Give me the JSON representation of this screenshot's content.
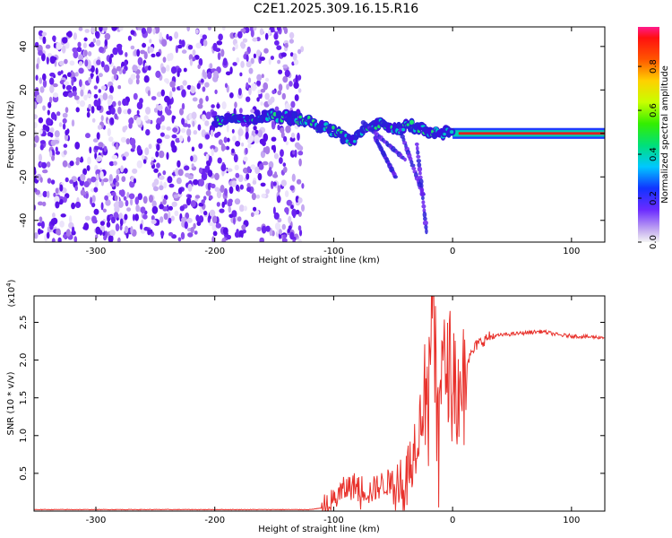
{
  "title": "C2E1.2025.309.16.15.R16",
  "chart_data": [
    {
      "type": "heatmap",
      "xlabel": "Height of straight line (km)",
      "ylabel": "Frequency (Hz)",
      "xlim": [
        -352,
        128
      ],
      "ylim": [
        -50,
        49
      ],
      "xticks": [
        -300,
        -200,
        -100,
        0,
        100
      ],
      "xtick_labels": [
        "-300",
        "-200",
        "-100",
        "0",
        "100"
      ],
      "yticks": [
        -40,
        -20,
        0,
        20,
        40
      ],
      "ytick_labels": [
        "-40",
        "-20",
        "0",
        "20",
        "40"
      ],
      "noise_region_x": [
        -352,
        -128
      ],
      "signal_track": [
        {
          "x": -200,
          "y": 6
        },
        {
          "x": -185,
          "y": 7
        },
        {
          "x": -170,
          "y": 7
        },
        {
          "x": -150,
          "y": 8
        },
        {
          "x": -130,
          "y": 7
        },
        {
          "x": -115,
          "y": 4
        },
        {
          "x": -100,
          "y": 1
        },
        {
          "x": -85,
          "y": -3
        },
        {
          "x": -75,
          "y": 0
        },
        {
          "x": -60,
          "y": 5
        },
        {
          "x": -45,
          "y": 2
        },
        {
          "x": -35,
          "y": 4
        },
        {
          "x": -20,
          "y": 1
        },
        {
          "x": 0,
          "y": 0
        },
        {
          "x": 60,
          "y": 0
        },
        {
          "x": 128,
          "y": 0
        }
      ],
      "colorbar": {
        "label": "Normalized spectral amplitude",
        "range": [
          0.0,
          0.98
        ],
        "ticks": [
          0.0,
          0.2,
          0.4,
          0.6,
          0.8
        ],
        "tick_labels": [
          "0.0",
          "0.2",
          "0.4",
          "0.6",
          "0.8"
        ]
      }
    },
    {
      "type": "line",
      "xlabel": "Height of straight line (km)",
      "ylabel": "SNR (10 * v/v)",
      "y_exponent_label": "(x10",
      "y_exponent_power": "4",
      "y_exponent_close": ")",
      "xlim": [
        -352,
        128
      ],
      "ylim": [
        0,
        2.85
      ],
      "xticks": [
        -300,
        -200,
        -100,
        0,
        100
      ],
      "xtick_labels": [
        "-300",
        "-200",
        "-100",
        "0",
        "100"
      ],
      "yticks": [
        0.5,
        1.0,
        1.5,
        2.0,
        2.5
      ],
      "ytick_labels": [
        "0.5",
        "1.0",
        "1.5",
        "2.0",
        "2.5"
      ],
      "color": "#e8312b",
      "series": [
        {
          "name": "SNR",
          "x": [
            -352,
            -300,
            -250,
            -200,
            -150,
            -120,
            -105,
            -100,
            -90,
            -80,
            -70,
            -60,
            -50,
            -45,
            -40,
            -35,
            -30,
            -25,
            -20,
            -17,
            -15,
            -10,
            -5,
            0,
            5,
            10,
            15,
            20,
            30,
            40,
            60,
            75,
            90,
            110,
            128
          ],
          "y": [
            0.02,
            0.02,
            0.02,
            0.02,
            0.02,
            0.02,
            0.05,
            0.15,
            0.3,
            0.35,
            0.25,
            0.35,
            0.4,
            0.5,
            0.3,
            0.7,
            1.0,
            1.4,
            1.8,
            2.8,
            2.0,
            1.8,
            1.9,
            2.0,
            1.5,
            1.95,
            2.05,
            2.2,
            2.3,
            2.33,
            2.36,
            2.38,
            2.33,
            2.31,
            2.3
          ]
        }
      ]
    }
  ]
}
